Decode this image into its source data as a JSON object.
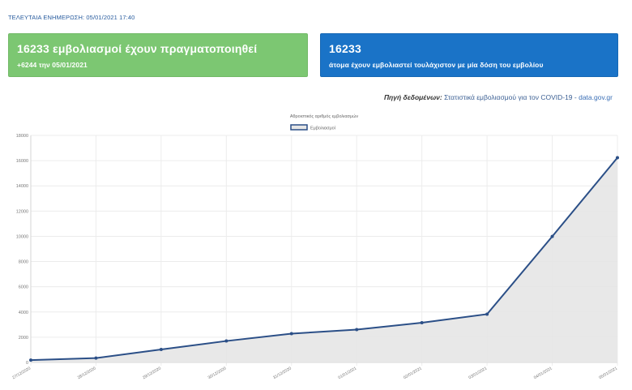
{
  "header": {
    "last_updated": "ΤΕΛΕΥΤΑΙΑ ΕΝΗΜΕΡΩΣΗ: 05/01/2021 17:40"
  },
  "cards": {
    "total": {
      "headline": "16233 εμβολιασμοί έχουν πραγματοποιηθεί",
      "sub": "+6244 την 05/01/2021"
    },
    "people": {
      "headline": "16233",
      "sub": "άτομα έχουν εμβολιαστεί τουλάχιστον με μία δόση του εμβολίου"
    }
  },
  "source": {
    "label": "Πηγή δεδομένων:",
    "text": "Στατιστικά εμβολιασμού για τον COVID-19 -",
    "link": "data.gov.gr"
  },
  "colors": {
    "green_card": "#7cc772",
    "blue_card": "#1a73c7",
    "line": "#2b4f87",
    "area": "#e6e6e6"
  },
  "chart_data": {
    "type": "area",
    "title": "Αθροιστικός αριθμός εμβολιασμών",
    "legend": "top-center",
    "grid": true,
    "categories": [
      "27/12/2020",
      "28/12/2020",
      "29/12/2020",
      "30/12/2020",
      "31/12/2020",
      "01/01/2021",
      "02/01/2021",
      "03/01/2021",
      "04/01/2021",
      "05/01/2021"
    ],
    "series": [
      {
        "name": "Εμβολιασμοί",
        "values": [
          183,
          344,
          1032,
          1700,
          2283,
          2601,
          3150,
          3827,
          9989,
          16233
        ]
      }
    ],
    "ylim": [
      0,
      18000
    ],
    "yticks": [
      0,
      2000,
      4000,
      6000,
      8000,
      10000,
      12000,
      14000,
      16000,
      18000
    ]
  }
}
